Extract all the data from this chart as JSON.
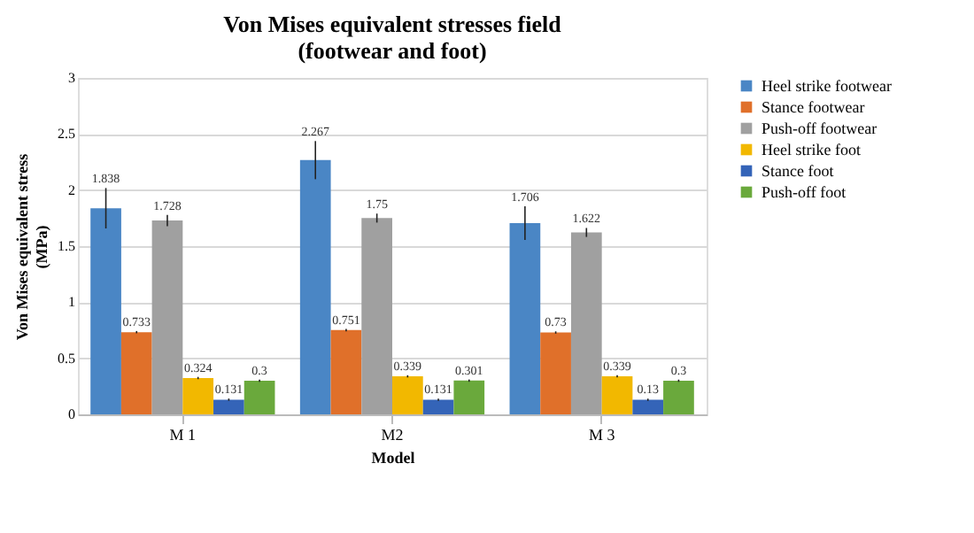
{
  "chart_data": {
    "type": "bar",
    "title": "Von Mises equivalent stresses field\n(footwear and foot)",
    "xlabel": "Model",
    "ylabel": "Von Mises equivalent stress\n(MPa)",
    "categories": [
      "M 1",
      "M2",
      "M 3"
    ],
    "series": [
      {
        "name": "Heel strike footwear",
        "color": "#4a86c5",
        "values": [
          1.838,
          2.267,
          1.706
        ],
        "errors": [
          0.18,
          0.17,
          0.15
        ]
      },
      {
        "name": "Stance footwear",
        "color": "#e0702a",
        "values": [
          0.733,
          0.751,
          0.73
        ],
        "errors": [
          0.01,
          0.01,
          0.01
        ]
      },
      {
        "name": "Push-off footwear",
        "color": "#a0a0a0",
        "values": [
          1.728,
          1.75,
          1.622
        ],
        "errors": [
          0.05,
          0.04,
          0.04
        ]
      },
      {
        "name": "Heel strike foot",
        "color": "#f2b800",
        "values": [
          0.324,
          0.339,
          0.339
        ],
        "errors": [
          0.01,
          0.01,
          0.01
        ]
      },
      {
        "name": "Stance foot",
        "color": "#3464b8",
        "values": [
          0.131,
          0.131,
          0.13
        ],
        "errors": [
          0.01,
          0.01,
          0.01
        ]
      },
      {
        "name": "Push-off foot",
        "color": "#6aa93c",
        "values": [
          0.3,
          0.301,
          0.3
        ],
        "errors": [
          0.01,
          0.01,
          0.01
        ]
      }
    ],
    "ylim": [
      0,
      3
    ],
    "yticks": [
      0,
      0.5,
      1,
      1.5,
      2,
      2.5,
      3
    ],
    "grid": "y",
    "legend": "right",
    "data_labels": true
  }
}
